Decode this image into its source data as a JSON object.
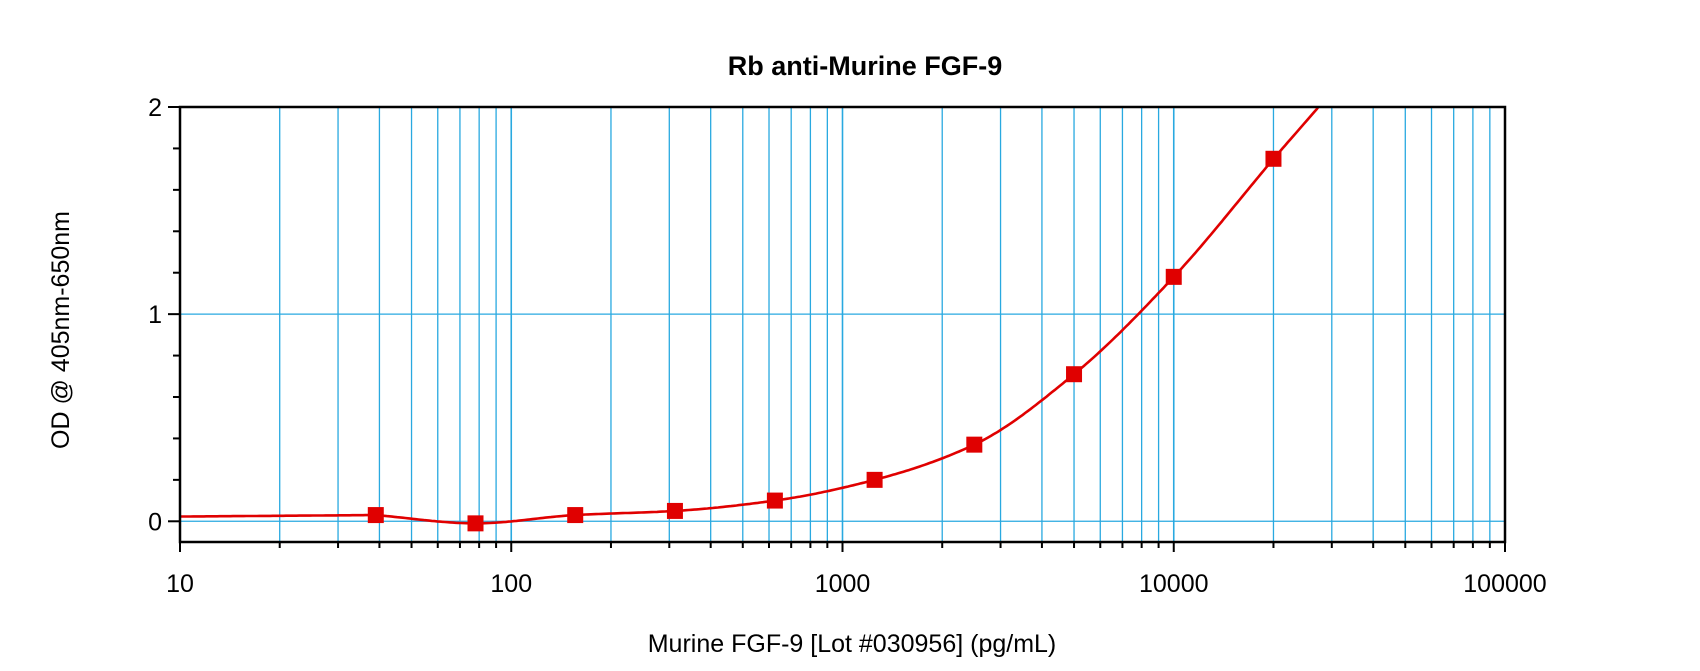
{
  "chart_data": {
    "type": "line",
    "title": "Rb anti-Murine FGF-9",
    "xlabel": "Murine FGF-9 [Lot #030956] (pg/mL)",
    "ylabel": "OD @ 405nm-650nm",
    "x_scale": "log",
    "xlim": [
      10,
      100000
    ],
    "ylim": [
      -0.1,
      2
    ],
    "x_ticks": [
      "10",
      "100",
      "1000",
      "10000",
      "100000"
    ],
    "y_ticks": [
      "0",
      "1",
      "2"
    ],
    "grid": "vertical log grid plus y major gridlines",
    "series": [
      {
        "marker": "square",
        "color": "#e00000",
        "points": [
          {
            "x": 39,
            "y": 0.03
          },
          {
            "x": 78,
            "y": -0.01
          },
          {
            "x": 156,
            "y": 0.03
          },
          {
            "x": 312,
            "y": 0.05
          },
          {
            "x": 625,
            "y": 0.1
          },
          {
            "x": 1250,
            "y": 0.2
          },
          {
            "x": 2500,
            "y": 0.37
          },
          {
            "x": 5000,
            "y": 0.71
          },
          {
            "x": 10000,
            "y": 1.18
          },
          {
            "x": 20000,
            "y": 1.75
          }
        ]
      }
    ],
    "colors": {
      "grid": "#29a9e0",
      "curve": "#e00000",
      "marker": "#e00000",
      "axis": "#000000"
    }
  }
}
